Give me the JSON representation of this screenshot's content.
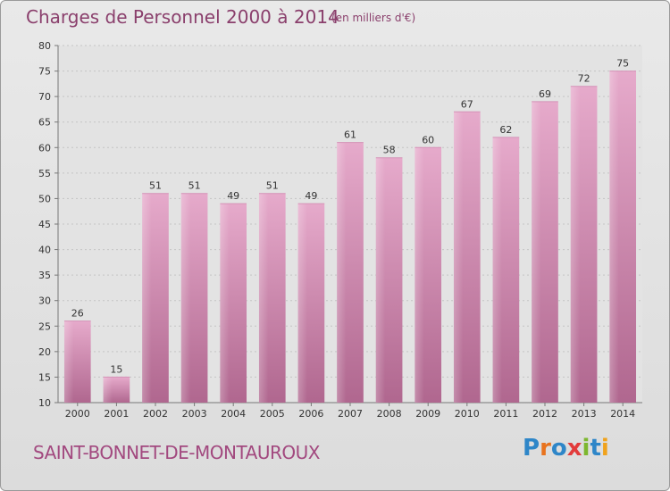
{
  "chart_data": {
    "type": "bar",
    "title": "Charges de Personnel 2000 à 2014",
    "subtitle": "(en milliers d'€)",
    "categories": [
      "2000",
      "2001",
      "2002",
      "2003",
      "2004",
      "2005",
      "2006",
      "2007",
      "2008",
      "2009",
      "2010",
      "2011",
      "2012",
      "2013",
      "2014"
    ],
    "values": [
      26,
      15,
      51,
      51,
      49,
      51,
      49,
      61,
      58,
      60,
      67,
      62,
      69,
      72,
      75
    ],
    "ylim": [
      10,
      80
    ],
    "yticks": [
      10,
      15,
      20,
      25,
      30,
      35,
      40,
      45,
      50,
      55,
      60,
      65,
      70,
      75,
      80
    ],
    "grid": true,
    "bar_color": "#c3739f"
  },
  "footer": {
    "commune": "SAINT-BONNET-DE-MONTAUROUX",
    "logo_letters": [
      {
        "ch": "P",
        "color": "#2e86c8"
      },
      {
        "ch": "r",
        "color": "#e8731e"
      },
      {
        "ch": "o",
        "color": "#2e86c8"
      },
      {
        "ch": "x",
        "color": "#e23b3b"
      },
      {
        "ch": "i",
        "color": "#7db72f"
      },
      {
        "ch": "t",
        "color": "#2e86c8"
      },
      {
        "ch": "i",
        "color": "#f0a21c"
      }
    ]
  }
}
